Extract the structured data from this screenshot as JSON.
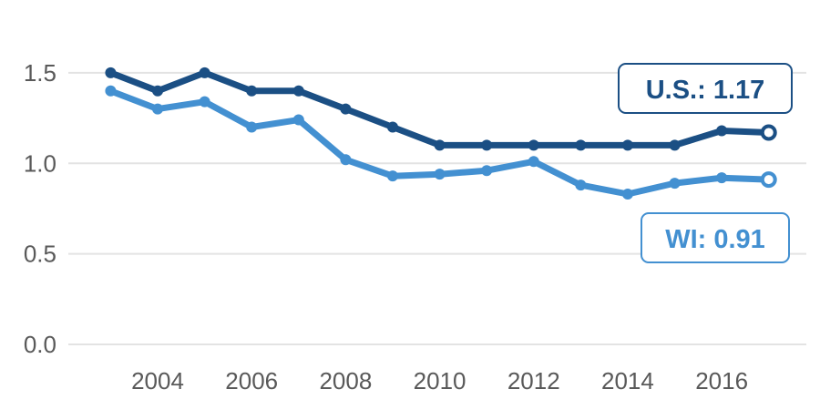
{
  "chart_data": {
    "type": "line",
    "x": [
      2003,
      2004,
      2005,
      2006,
      2007,
      2008,
      2009,
      2010,
      2011,
      2012,
      2013,
      2014,
      2015,
      2016,
      2017
    ],
    "xticks": [
      "2004",
      "2006",
      "2008",
      "2010",
      "2012",
      "2014",
      "2016"
    ],
    "yticks": [
      "0.0",
      "0.5",
      "1.0",
      "1.5"
    ],
    "ylim": [
      0,
      1.6
    ],
    "xlim": [
      2002.1,
      2017.8
    ],
    "grid": "horizontal",
    "series": [
      {
        "key": "us",
        "color": "#1b4f84",
        "values": [
          1.5,
          1.4,
          1.5,
          1.4,
          1.4,
          1.3,
          1.2,
          1.1,
          1.1,
          1.1,
          1.1,
          1.1,
          1.1,
          1.18,
          1.17
        ],
        "label": "U.S.: 1.17"
      },
      {
        "key": "wi",
        "color": "#4390d1",
        "values": [
          1.4,
          1.3,
          1.34,
          1.2,
          1.24,
          1.02,
          0.93,
          0.94,
          0.96,
          1.01,
          0.88,
          0.83,
          0.89,
          0.92,
          0.91
        ],
        "label": "WI: 0.91"
      }
    ]
  }
}
